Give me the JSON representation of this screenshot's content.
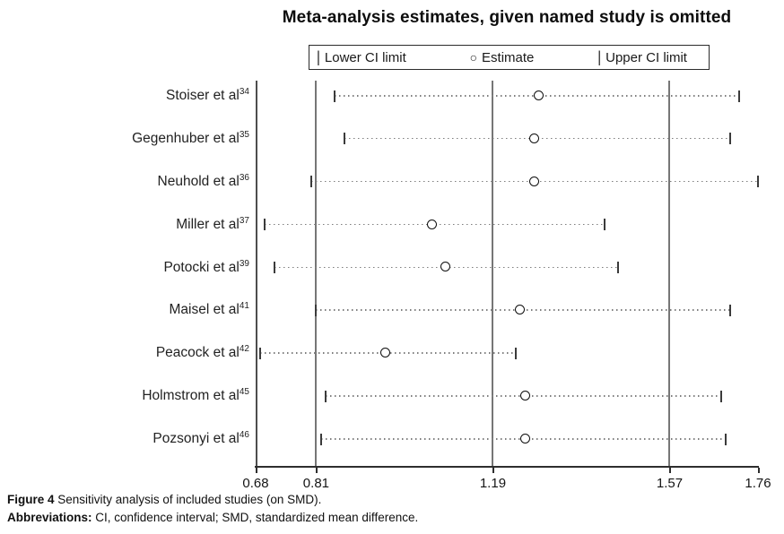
{
  "title": "Meta-analysis estimates, given named study is omitted",
  "legend": {
    "items": [
      {
        "icon": "ci-tick",
        "glyph": "|",
        "label": "Lower CI limit"
      },
      {
        "icon": "estimate-circle",
        "glyph": "○",
        "label": "Estimate"
      },
      {
        "icon": "ci-tick",
        "glyph": "|",
        "label": "Upper CI limit"
      }
    ]
  },
  "chart_data": {
    "type": "scatter",
    "subtype": "leave-one-out sensitivity forest plot (estimate with CI ticks per omitted study)",
    "title": "Meta-analysis estimates, given named study is omitted",
    "xlabel": "",
    "ylabel": "",
    "xlim": [
      0.68,
      1.76
    ],
    "xticks": [
      0.68,
      0.81,
      1.19,
      1.57,
      1.76
    ],
    "ref_lines": [
      0.81,
      1.19,
      1.57
    ],
    "grid": false,
    "legend_position": "top-center",
    "series": [
      {
        "name": "Lower CI limit",
        "marker": "vertical-tick"
      },
      {
        "name": "Estimate",
        "marker": "open-circle"
      },
      {
        "name": "Upper CI limit",
        "marker": "vertical-tick"
      }
    ],
    "studies": [
      {
        "label": "Stoiser et al",
        "ref": "34",
        "lower": 0.85,
        "estimate": 1.29,
        "upper": 1.72
      },
      {
        "label": "Gegenhuber et al",
        "ref": "35",
        "lower": 0.87,
        "estimate": 1.28,
        "upper": 1.7
      },
      {
        "label": "Neuhold et al",
        "ref": "36",
        "lower": 0.8,
        "estimate": 1.28,
        "upper": 1.76
      },
      {
        "label": "Miller et al",
        "ref": "37",
        "lower": 0.7,
        "estimate": 1.06,
        "upper": 1.43
      },
      {
        "label": "Potocki et al",
        "ref": "39",
        "lower": 0.72,
        "estimate": 1.09,
        "upper": 1.46
      },
      {
        "label": "Maisel et al",
        "ref": "41",
        "lower": 0.81,
        "estimate": 1.25,
        "upper": 1.7
      },
      {
        "label": "Peacock et al",
        "ref": "42",
        "lower": 0.69,
        "estimate": 0.96,
        "upper": 1.24
      },
      {
        "label": "Holmstrom et al",
        "ref": "45",
        "lower": 0.83,
        "estimate": 1.26,
        "upper": 1.68
      },
      {
        "label": "Pozsonyi et al",
        "ref": "46",
        "lower": 0.82,
        "estimate": 1.26,
        "upper": 1.69
      }
    ],
    "colors": {
      "marker": "#0f0f0f",
      "ci_dotted_line": "#7d7d7d",
      "reference_line": "#767676",
      "axis_line": "#2e2e2e",
      "text": "#1a1a1a"
    }
  },
  "caption": {
    "figure_label": "Figure 4",
    "figure_text": "Sensitivity analysis of included studies (on SMD).",
    "abbrev_label": "Abbreviations:",
    "abbrev_text": "CI, confidence interval; SMD, standardized mean difference."
  }
}
